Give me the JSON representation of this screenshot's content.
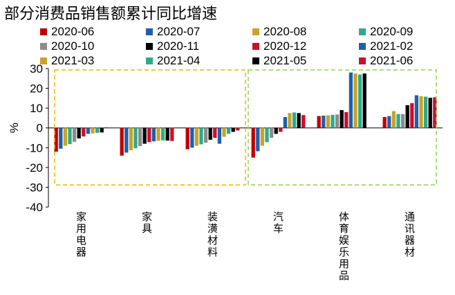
{
  "title": "部分消费品销售额累计同比增速",
  "chart_data": {
    "type": "bar",
    "ylabel": "%",
    "ylim": [
      -40,
      30
    ],
    "yticks": [
      30,
      20,
      10,
      0,
      -10,
      -20,
      -30,
      -40
    ],
    "categories": [
      "家用电器",
      "家具",
      "装潢材料",
      "汽车",
      "体育娱乐用品",
      "通讯器材"
    ],
    "series": [
      {
        "name": "2020-06",
        "color": "#C00000",
        "values": [
          -12.0,
          -14.0,
          -10.8,
          -15.0,
          6.0,
          5.5
        ]
      },
      {
        "name": "2020-07",
        "color": "#1F5FA8",
        "values": [
          -10.5,
          -12.5,
          -10.0,
          -11.8,
          6.2,
          6.0
        ]
      },
      {
        "name": "2020-08",
        "color": "#C9A227",
        "values": [
          -9.0,
          -11.3,
          -9.0,
          -9.0,
          6.4,
          8.5
        ]
      },
      {
        "name": "2020-09",
        "color": "#2EAA8A",
        "values": [
          -8.2,
          -10.3,
          -8.3,
          -7.2,
          6.6,
          7.0
        ]
      },
      {
        "name": "2020-10",
        "color": "#8C8C8C",
        "values": [
          -7.0,
          -9.2,
          -7.5,
          -5.0,
          6.8,
          7.0
        ]
      },
      {
        "name": "2020-11",
        "color": "#000000",
        "values": [
          -5.3,
          -8.0,
          -6.0,
          -3.0,
          9.0,
          11.5
        ]
      },
      {
        "name": "2020-12",
        "color": "#C8102E",
        "values": [
          -4.3,
          -7.2,
          -5.0,
          -2.0,
          8.0,
          12.5
        ]
      },
      {
        "name": "2021-02",
        "color": "#1F5FA8",
        "values": [
          -3.0,
          -6.8,
          -8.0,
          5.5,
          28.0,
          16.5
        ]
      },
      {
        "name": "2021-03",
        "color": "#C9A227",
        "values": [
          -2.8,
          -6.5,
          -4.5,
          7.5,
          27.5,
          16.0
        ]
      },
      {
        "name": "2021-04",
        "color": "#2EAA8A",
        "values": [
          -2.5,
          -6.3,
          -3.0,
          7.8,
          27.0,
          15.8
        ]
      },
      {
        "name": "2021-05",
        "color": "#000000",
        "values": [
          -2.3,
          -6.4,
          -2.0,
          7.5,
          27.5,
          15.2
        ]
      },
      {
        "name": "2021-06",
        "color": "#C8102E",
        "values": [
          0.3,
          -6.6,
          -1.3,
          6.5,
          0.0,
          15.5
        ]
      }
    ],
    "highlight_boxes": [
      {
        "group": "left",
        "color": "#F0B400",
        "style": "dashed"
      },
      {
        "group": "right",
        "color": "#92D050",
        "style": "dashed"
      }
    ]
  }
}
